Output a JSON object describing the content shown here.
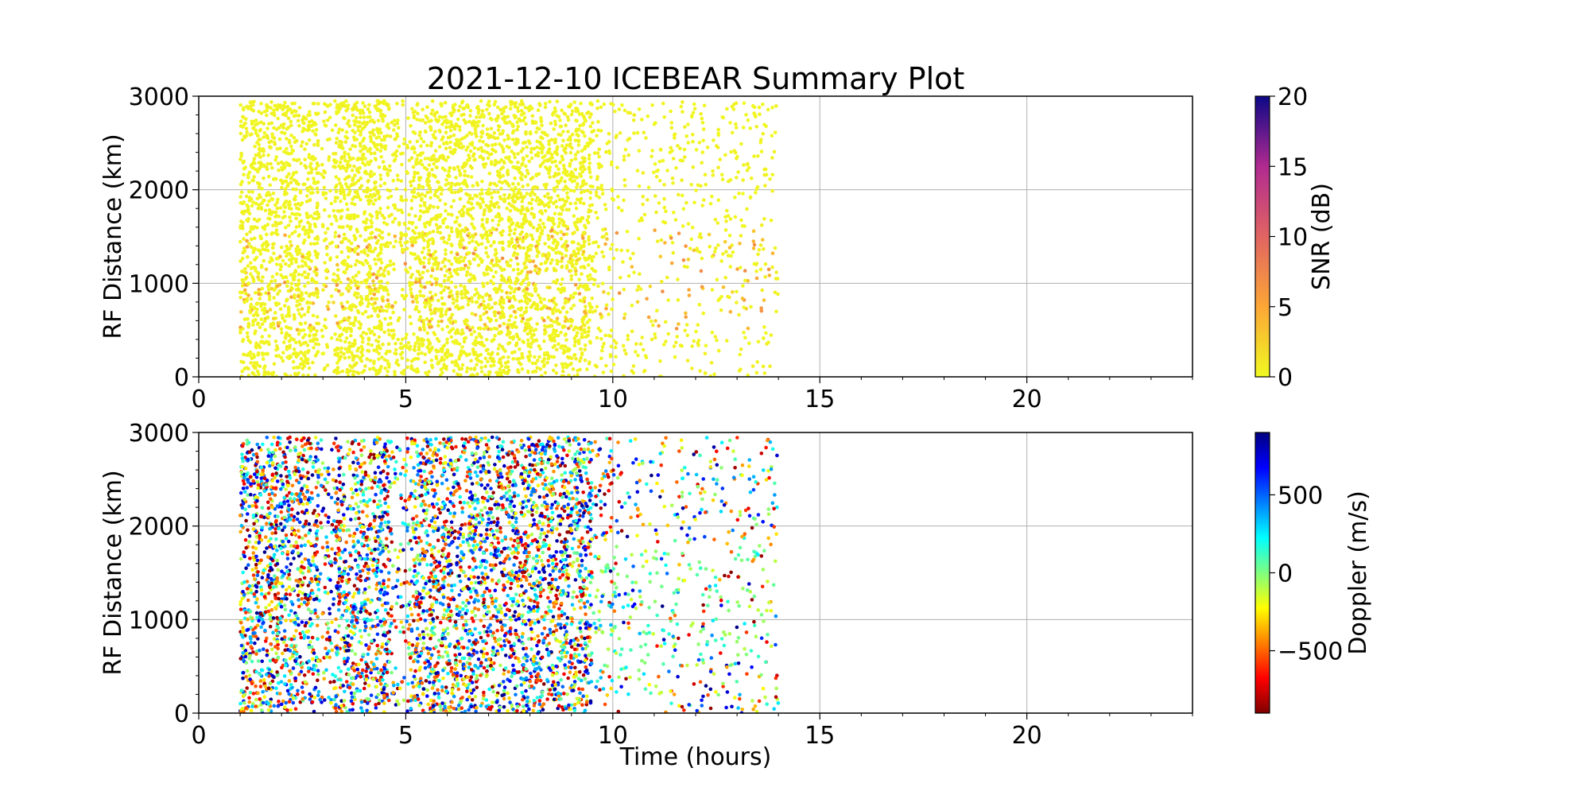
{
  "chart_data": [
    {
      "type": "scatter",
      "title": "2021-12-10 ICEBEAR Summary Plot",
      "xlabel": "",
      "ylabel": "RF Distance (km)",
      "xlim": [
        0,
        24
      ],
      "ylim": [
        0,
        3000
      ],
      "x_ticks": [
        "0",
        "5",
        "10",
        "15",
        "20"
      ],
      "y_ticks": [
        "0",
        "1000",
        "2000",
        "3000"
      ],
      "grid": true,
      "colorbar": {
        "label": "SNR (dB)",
        "range": [
          0,
          20
        ],
        "ticks": [
          "0",
          "5",
          "10",
          "15",
          "20"
        ],
        "colormap": "plasma_r"
      },
      "data_extent": {
        "x_range": [
          1,
          14
        ],
        "y_range": [
          0,
          2950
        ]
      },
      "dominant_color": "#f5dd2a"
    },
    {
      "type": "scatter",
      "title": "",
      "xlabel": "Time (hours)",
      "ylabel": "RF Distance (km)",
      "xlim": [
        0,
        24
      ],
      "ylim": [
        0,
        3000
      ],
      "x_ticks": [
        "0",
        "5",
        "10",
        "15",
        "20"
      ],
      "y_ticks": [
        "0",
        "1000",
        "2000",
        "3000"
      ],
      "grid": true,
      "colorbar": {
        "label": "Doppler (m/s)",
        "range": [
          -900,
          900
        ],
        "ticks": [
          "−500",
          "0",
          "500"
        ],
        "colormap": "jet_r"
      },
      "data_extent": {
        "x_range": [
          1,
          14
        ],
        "y_range": [
          0,
          2950
        ]
      }
    }
  ]
}
